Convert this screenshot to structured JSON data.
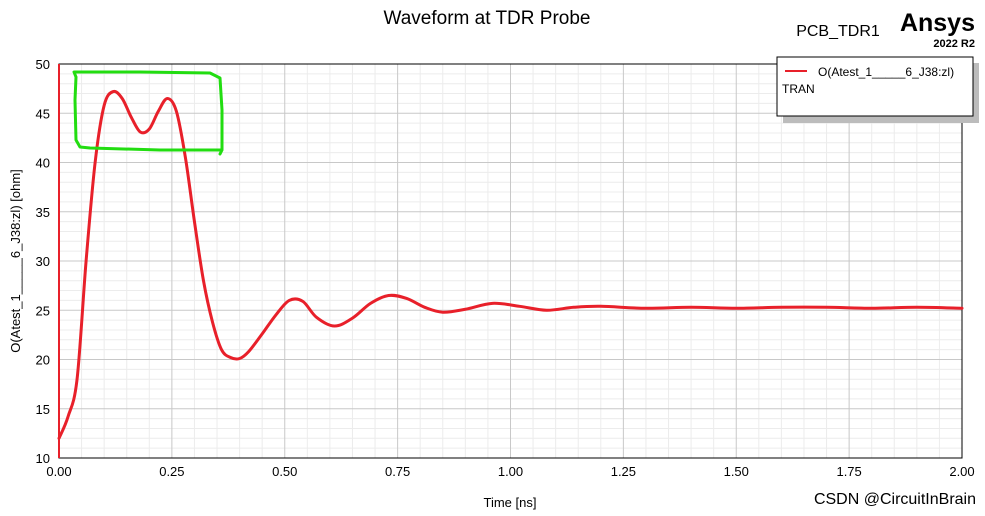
{
  "header": {
    "project": "PCB_TDR1",
    "brand": "Ansys",
    "version": "2022 R2"
  },
  "watermark": "CSDN @CircuitInBrain",
  "legend": {
    "entry": "O(Atest_1_____6_J38:zl)",
    "subtitle": "TRAN"
  },
  "colors": {
    "trace": "#e8202a",
    "highlight": "#22dd11",
    "grid_major": "#c8c8c8",
    "grid_minor": "#ececec"
  },
  "chart_data": {
    "type": "line",
    "title": "Waveform at TDR Probe",
    "xlabel": "Time [ns]",
    "ylabel": "O(Atest_1_____6_J38:zl) [ohm]",
    "xlim": [
      0,
      2.0
    ],
    "ylim": [
      10,
      50
    ],
    "xticks": [
      "0.00",
      "0.25",
      "0.50",
      "0.75",
      "1.00",
      "1.25",
      "1.50",
      "1.75",
      "2.00"
    ],
    "yticks": [
      "10",
      "15",
      "20",
      "25",
      "30",
      "35",
      "40",
      "45",
      "50"
    ],
    "grid": true,
    "legend_position": "top-right",
    "series": [
      {
        "name": "O(Atest_1_____6_J38:zl)",
        "x": [
          0.0,
          0.02,
          0.04,
          0.06,
          0.08,
          0.1,
          0.12,
          0.14,
          0.16,
          0.18,
          0.2,
          0.22,
          0.24,
          0.26,
          0.28,
          0.3,
          0.32,
          0.34,
          0.36,
          0.38,
          0.4,
          0.42,
          0.45,
          0.48,
          0.51,
          0.54,
          0.57,
          0.61,
          0.65,
          0.69,
          0.73,
          0.77,
          0.81,
          0.85,
          0.9,
          0.96,
          1.02,
          1.08,
          1.14,
          1.2,
          1.3,
          1.4,
          1.5,
          1.6,
          1.7,
          1.8,
          1.9,
          2.0
        ],
        "y": [
          12.0,
          14.2,
          18.0,
          30.0,
          40.0,
          45.8,
          47.2,
          46.5,
          44.6,
          43.1,
          43.4,
          45.2,
          46.5,
          45.2,
          40.5,
          34.0,
          28.0,
          23.8,
          21.0,
          20.2,
          20.1,
          20.8,
          22.6,
          24.5,
          26.0,
          25.9,
          24.3,
          23.4,
          24.2,
          25.7,
          26.5,
          26.2,
          25.3,
          24.8,
          25.1,
          25.7,
          25.4,
          25.0,
          25.3,
          25.4,
          25.2,
          25.3,
          25.2,
          25.3,
          25.3,
          25.2,
          25.3,
          25.2
        ]
      }
    ]
  }
}
